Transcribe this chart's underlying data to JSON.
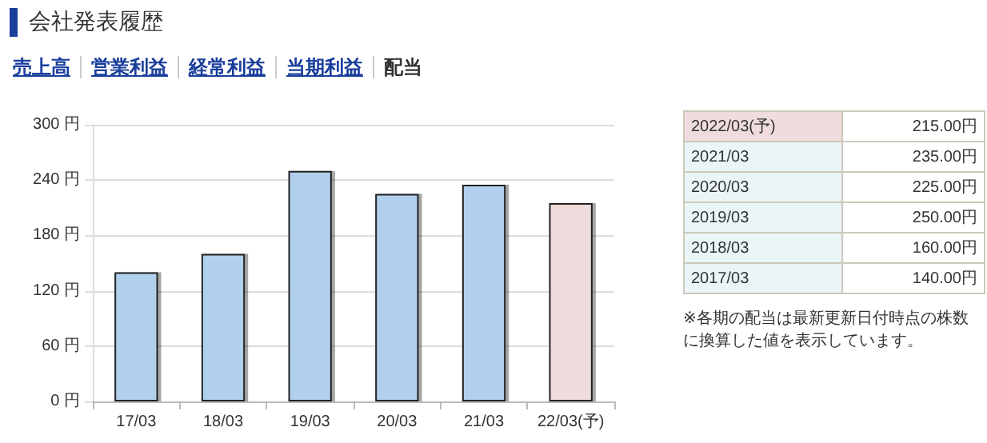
{
  "chart_data": {
    "type": "bar",
    "title": "会社発表履歴",
    "categories": [
      "17/03",
      "18/03",
      "19/03",
      "20/03",
      "21/03",
      "22/03(予)"
    ],
    "values": [
      140,
      160,
      250,
      225,
      235,
      215
    ],
    "colors": [
      "#b0d0ee",
      "#b0d0ee",
      "#b0d0ee",
      "#b0d0ee",
      "#b0d0ee",
      "#f0dcdc"
    ],
    "ylim": [
      0,
      300
    ],
    "yticks": [
      {
        "value": 0,
        "label": "0 円"
      },
      {
        "value": 60,
        "label": "60 円"
      },
      {
        "value": 120,
        "label": "120 円"
      },
      {
        "value": 180,
        "label": "180 円"
      },
      {
        "value": 240,
        "label": "240 円"
      },
      {
        "value": 300,
        "label": "300 円"
      }
    ],
    "grid": "y",
    "annotations": [
      "売上高",
      "営業利益",
      "経常利益",
      "当期利益",
      "配当",
      "2017/03",
      "2018/03",
      "2019/03",
      "2020/03",
      "2021/03",
      "2022/03(予)",
      "140.00円",
      "160.00円",
      "250.00円",
      "225.00円",
      "235.00円",
      "215.00円",
      "※各期の配当は最新更新日付時点の株数に換算した値を表示しています。"
    ]
  }
}
